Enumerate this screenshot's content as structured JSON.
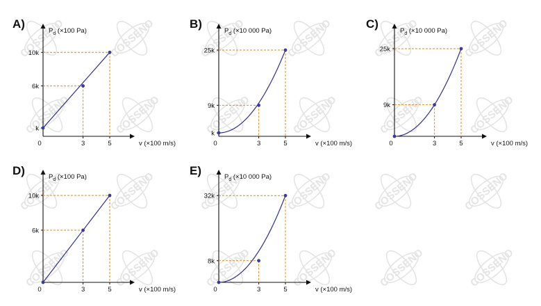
{
  "watermark": {
    "text": "COSSENO"
  },
  "colors": {
    "curve": "#2e2e8c",
    "point": "#3b3b9a",
    "guide": "#e08a1e",
    "axis": "#111111",
    "watermark": "#e4e4e4"
  },
  "chart_data": [
    {
      "letter": "A)",
      "type": "line",
      "ylabel_main": "P",
      "ylabel_sub": "d",
      "ylabel_unit": " (×100 Pa)",
      "xlabel": "v (×100 m/s)",
      "x_ticks": [
        "0",
        "3",
        "5"
      ],
      "xlim": [
        0,
        5.6
      ],
      "ylim": [
        0,
        11.1
      ],
      "y_ticks": [
        {
          "label": "k",
          "value": 1
        },
        {
          "label": "6k",
          "value": 6
        },
        {
          "label": "10k",
          "value": 10
        }
      ],
      "curve": "linear",
      "points": [
        {
          "x": 0,
          "y": 1
        },
        {
          "x": 3,
          "y": 6
        },
        {
          "x": 5,
          "y": 10
        }
      ],
      "guides": [
        {
          "x": 3,
          "y": 6
        },
        {
          "x": 5,
          "y": 10
        }
      ]
    },
    {
      "letter": "B)",
      "type": "line",
      "ylabel_main": "P",
      "ylabel_sub": "d",
      "ylabel_unit": " (×10 000 Pa)",
      "xlabel": "v (×100 m/s)",
      "x_ticks": [
        "0",
        "3",
        "5"
      ],
      "xlim": [
        0,
        5.6
      ],
      "ylim": [
        0,
        28
      ],
      "y_ticks": [
        {
          "label": "k",
          "value": 1
        },
        {
          "label": "9k",
          "value": 9
        },
        {
          "label": "25k",
          "value": 25
        }
      ],
      "curve": "quadratic",
      "points": [
        {
          "x": 0,
          "y": 1
        },
        {
          "x": 3,
          "y": 9
        },
        {
          "x": 5,
          "y": 25
        }
      ],
      "guides": [
        {
          "x": 3,
          "y": 9
        },
        {
          "x": 5,
          "y": 25
        }
      ]
    },
    {
      "letter": "C)",
      "type": "line",
      "ylabel_main": "P",
      "ylabel_sub": "d",
      "ylabel_unit": " (×10 000 Pa)",
      "xlabel": "v (×100 m/s)",
      "x_ticks": [
        "0",
        "3",
        "5"
      ],
      "xlim": [
        0,
        5.6
      ],
      "ylim": [
        0,
        28
      ],
      "y_ticks": [
        {
          "label": "9k",
          "value": 9
        },
        {
          "label": "25k",
          "value": 25
        }
      ],
      "curve": "quadratic",
      "points": [
        {
          "x": 0,
          "y": 0
        },
        {
          "x": 3,
          "y": 9
        },
        {
          "x": 5,
          "y": 25
        }
      ],
      "guides": [
        {
          "x": 3,
          "y": 9
        },
        {
          "x": 5,
          "y": 25
        }
      ]
    },
    {
      "letter": "D)",
      "type": "line",
      "ylabel_main": "P",
      "ylabel_sub": "d",
      "ylabel_unit": " (×100 Pa)",
      "xlabel": "v (×100 m/s)",
      "x_ticks": [
        "0",
        "3",
        "5"
      ],
      "xlim": [
        0,
        5.6
      ],
      "ylim": [
        0,
        11.1
      ],
      "y_ticks": [
        {
          "label": "6k",
          "value": 6
        },
        {
          "label": "10k",
          "value": 10
        }
      ],
      "curve": "linear",
      "points": [
        {
          "x": 0,
          "y": 0
        },
        {
          "x": 3,
          "y": 6
        },
        {
          "x": 5,
          "y": 10
        }
      ],
      "guides": [
        {
          "x": 3,
          "y": 6
        },
        {
          "x": 5,
          "y": 10
        }
      ]
    },
    {
      "letter": "E)",
      "type": "line",
      "ylabel_main": "P",
      "ylabel_sub": "d",
      "ylabel_unit": " (×10 000 Pa)",
      "xlabel": "v (×100 m/s)",
      "x_ticks": [
        "0",
        "3",
        "5"
      ],
      "xlim": [
        0,
        5.6
      ],
      "ylim": [
        0,
        35.5
      ],
      "y_ticks": [
        {
          "label": "8k",
          "value": 8
        },
        {
          "label": "32k",
          "value": 32
        }
      ],
      "curve": "quadratic",
      "points": [
        {
          "x": 0,
          "y": 0
        },
        {
          "x": 3,
          "y": 8
        },
        {
          "x": 5,
          "y": 32
        }
      ],
      "guides": [
        {
          "x": 3,
          "y": 8
        },
        {
          "x": 5,
          "y": 32
        }
      ]
    }
  ]
}
